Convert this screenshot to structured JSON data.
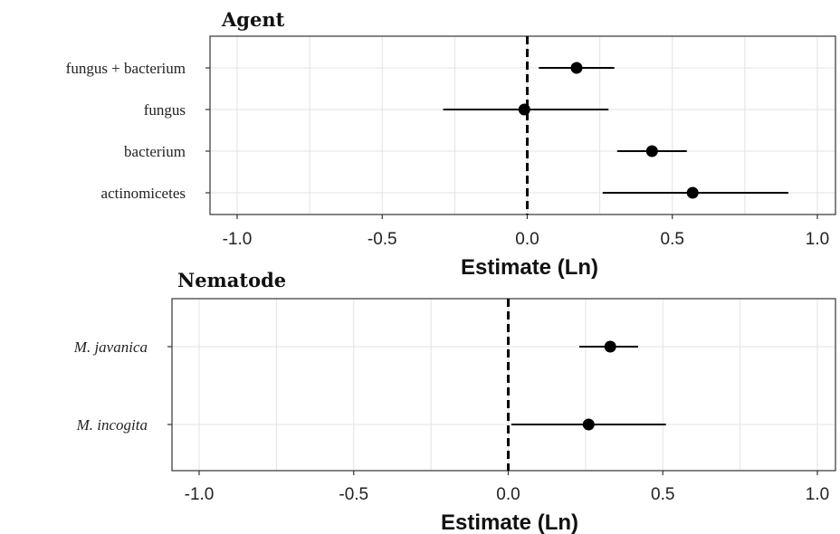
{
  "chart_data": [
    {
      "type": "scatter",
      "title": "Agent",
      "xlabel": "Estimate (Ln)",
      "ylabel": "",
      "xlim": [
        -1.0,
        1.0
      ],
      "x_ticks": [
        "-1.0",
        "-0.5",
        "0.0",
        "0.5",
        "1.0"
      ],
      "x_tick_values": [
        -1.0,
        -0.5,
        0.0,
        0.5,
        1.0
      ],
      "reference_line": 0.0,
      "grid": true,
      "italic_labels": false,
      "categories": [
        "fungus + bacterium",
        "fungus",
        "bacterium",
        "actinomicetes"
      ],
      "estimates": [
        0.17,
        -0.01,
        0.43,
        0.57
      ],
      "lower": [
        0.04,
        -0.29,
        0.31,
        0.26
      ],
      "upper": [
        0.3,
        0.28,
        0.55,
        0.9
      ]
    },
    {
      "type": "scatter",
      "title": "Nematode",
      "xlabel": "Estimate (Ln)",
      "ylabel": "",
      "xlim": [
        -1.0,
        1.0
      ],
      "x_ticks": [
        "-1.0",
        "-0.5",
        "0.0",
        "0.5",
        "1.0"
      ],
      "x_tick_values": [
        -1.0,
        -0.5,
        0.0,
        0.5,
        1.0
      ],
      "reference_line": 0.0,
      "grid": true,
      "italic_labels": true,
      "categories": [
        "M. javanica",
        "M. incogita"
      ],
      "estimates": [
        0.33,
        0.26
      ],
      "lower": [
        0.23,
        0.01
      ],
      "upper": [
        0.42,
        0.51
      ]
    }
  ]
}
